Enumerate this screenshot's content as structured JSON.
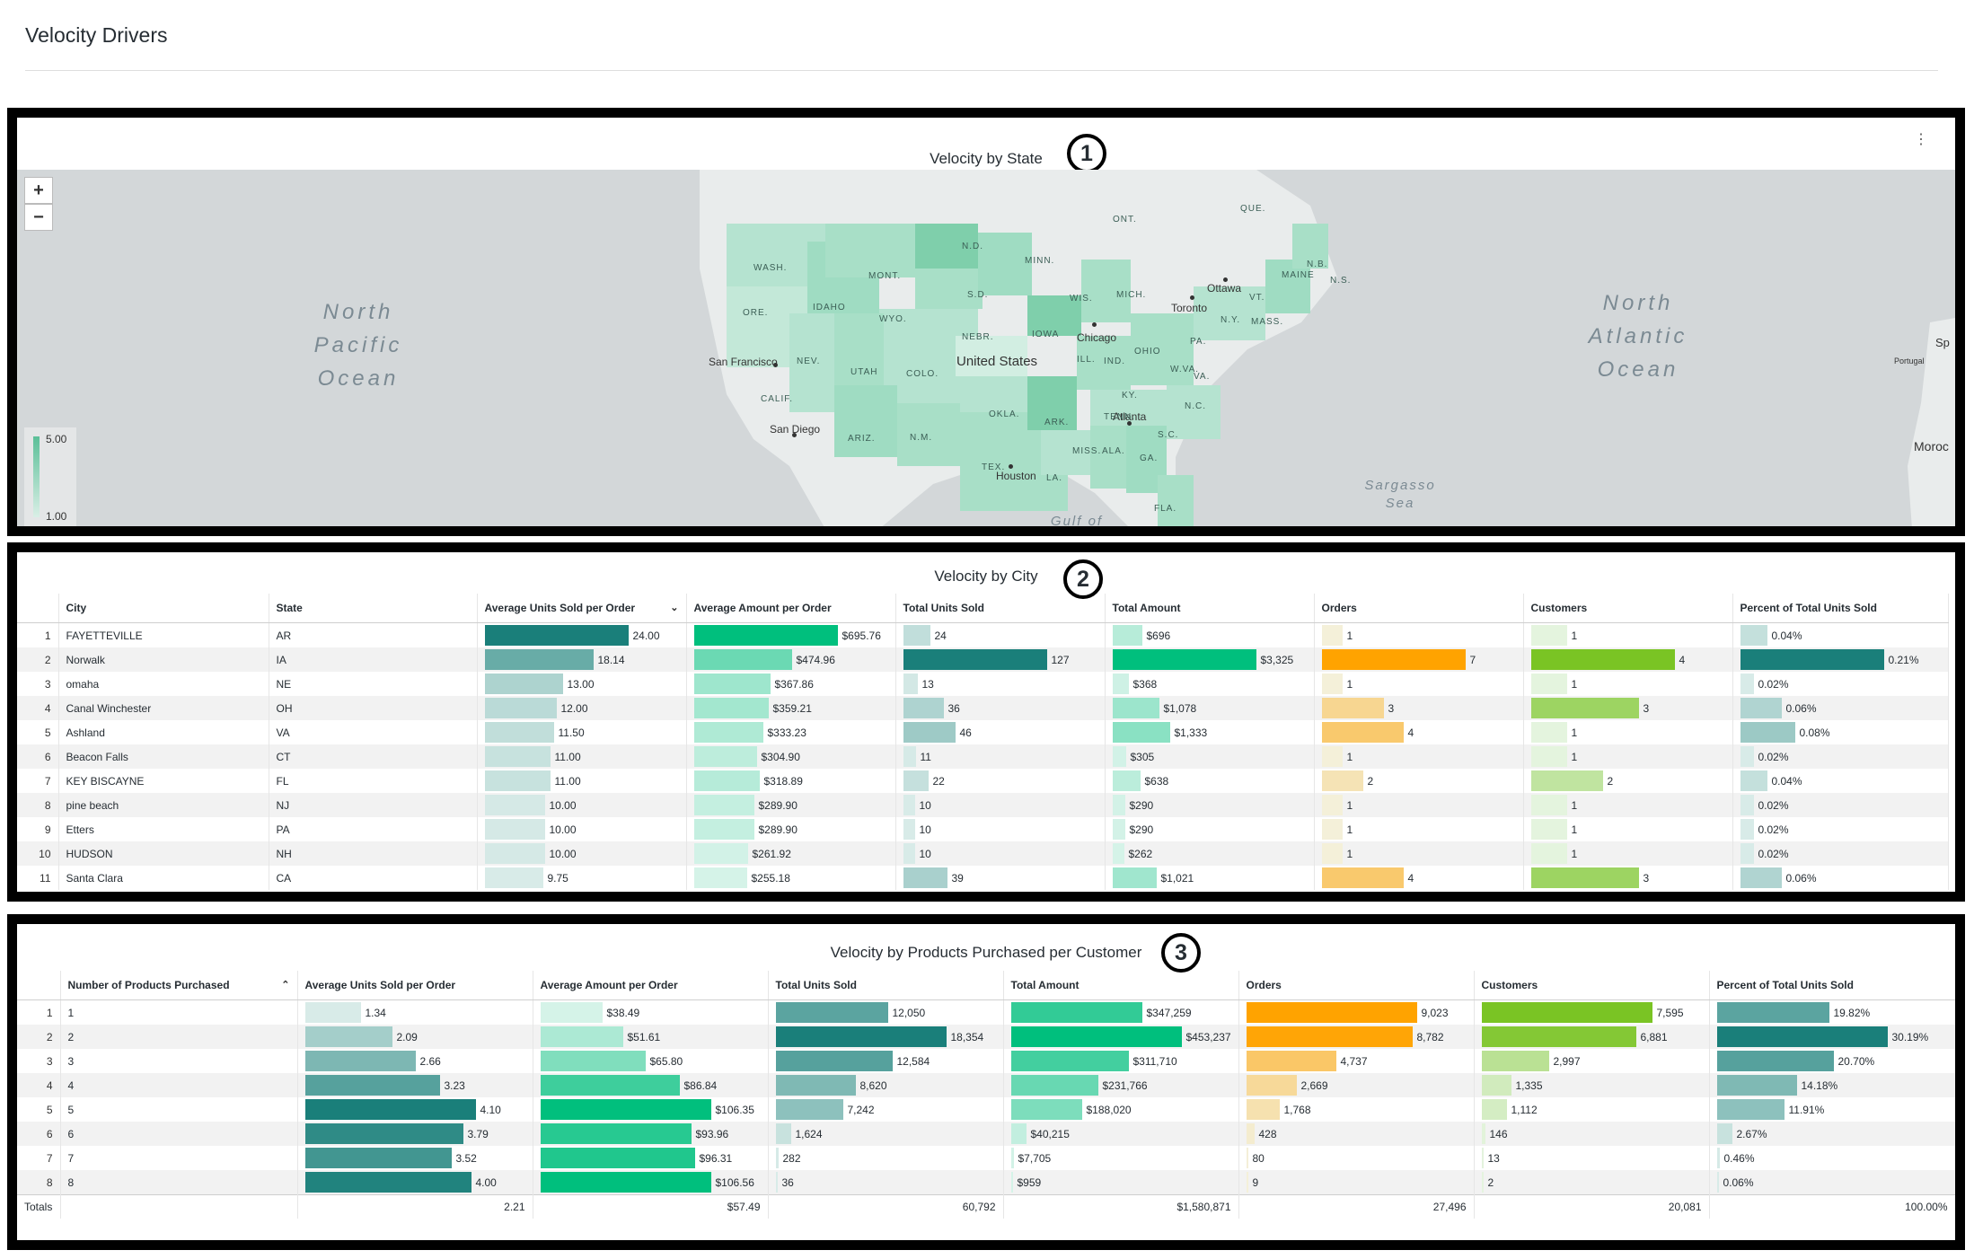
{
  "page": {
    "title": "Velocity Drivers"
  },
  "panels": {
    "map": {
      "title": "Velocity by State",
      "badge": "1"
    },
    "city": {
      "title": "Velocity by City",
      "badge": "2"
    },
    "products": {
      "title": "Velocity by Products Purchased per Customer",
      "badge": "3"
    }
  },
  "map": {
    "zoom_in": "+",
    "zoom_out": "−",
    "legend_max": "5.00",
    "legend_min": "1.00",
    "oceans": [
      "North Pacific Ocean",
      "North Atlantic Ocean",
      "Sargasso Sea",
      "Gulf of"
    ],
    "country": "United States",
    "partial_labels": [
      "Sp",
      "Portugal",
      "Moroc"
    ],
    "cities": [
      "Ottawa",
      "Toronto",
      "Chicago",
      "San Francisco",
      "San Diego",
      "Atlanta",
      "Houston"
    ],
    "state_abbrs": [
      "WASH.",
      "ORE.",
      "IDAHO",
      "MONT.",
      "WYO.",
      "N.D.",
      "S.D.",
      "NEBR.",
      "MINN.",
      "IOWA",
      "WIS.",
      "MICH.",
      "NEV.",
      "UTAH",
      "COLO.",
      "CALIF.",
      "ARIZ.",
      "N.M.",
      "OKLA.",
      "TEX.",
      "ARK.",
      "LA.",
      "MISS.",
      "ALA.",
      "GA.",
      "FLA.",
      "TENN.",
      "KY.",
      "ILL.",
      "IND.",
      "OHIO",
      "PA.",
      "N.Y.",
      "VT.",
      "MAINE",
      "MASS.",
      "W.VA.",
      "VA.",
      "N.C.",
      "S.C.",
      "ONT.",
      "QUE.",
      "N.B.",
      "N.S."
    ],
    "colors": {
      "high": "#5bbf98",
      "low": "#d9efe6",
      "land": "#e9ecec",
      "water": "#d3d7d9"
    }
  },
  "city_table": {
    "columns": [
      "City",
      "State",
      "Average Units Sold per Order",
      "Average Amount per Order",
      "Total Units Sold",
      "Total Amount",
      "Orders",
      "Customers",
      "Percent of Total Units Sold"
    ],
    "rows": [
      {
        "n": "1",
        "city": "FAYETTEVILLE",
        "state": "AR",
        "avg_units": 24.0,
        "avg_units_l": "24.00",
        "avg_amt": 695.76,
        "avg_amt_l": "$695.76",
        "units": 24,
        "units_l": "24",
        "amt": 696,
        "amt_l": "$696",
        "orders": 1,
        "orders_l": "1",
        "cust": 1,
        "cust_l": "1",
        "pct": 0.04,
        "pct_l": "0.04%"
      },
      {
        "n": "2",
        "city": "Norwalk",
        "state": "IA",
        "avg_units": 18.14,
        "avg_units_l": "18.14",
        "avg_amt": 474.96,
        "avg_amt_l": "$474.96",
        "units": 127,
        "units_l": "127",
        "amt": 3325,
        "amt_l": "$3,325",
        "orders": 7,
        "orders_l": "7",
        "cust": 4,
        "cust_l": "4",
        "pct": 0.21,
        "pct_l": "0.21%"
      },
      {
        "n": "3",
        "city": "omaha",
        "state": "NE",
        "avg_units": 13.0,
        "avg_units_l": "13.00",
        "avg_amt": 367.86,
        "avg_amt_l": "$367.86",
        "units": 13,
        "units_l": "13",
        "amt": 368,
        "amt_l": "$368",
        "orders": 1,
        "orders_l": "1",
        "cust": 1,
        "cust_l": "1",
        "pct": 0.02,
        "pct_l": "0.02%"
      },
      {
        "n": "4",
        "city": "Canal Winchester",
        "state": "OH",
        "avg_units": 12.0,
        "avg_units_l": "12.00",
        "avg_amt": 359.21,
        "avg_amt_l": "$359.21",
        "units": 36,
        "units_l": "36",
        "amt": 1078,
        "amt_l": "$1,078",
        "orders": 3,
        "orders_l": "3",
        "cust": 3,
        "cust_l": "3",
        "pct": 0.06,
        "pct_l": "0.06%"
      },
      {
        "n": "5",
        "city": "Ashland",
        "state": "VA",
        "avg_units": 11.5,
        "avg_units_l": "11.50",
        "avg_amt": 333.23,
        "avg_amt_l": "$333.23",
        "units": 46,
        "units_l": "46",
        "amt": 1333,
        "amt_l": "$1,333",
        "orders": 4,
        "orders_l": "4",
        "cust": 1,
        "cust_l": "1",
        "pct": 0.08,
        "pct_l": "0.08%"
      },
      {
        "n": "6",
        "city": "Beacon Falls",
        "state": "CT",
        "avg_units": 11.0,
        "avg_units_l": "11.00",
        "avg_amt": 304.9,
        "avg_amt_l": "$304.90",
        "units": 11,
        "units_l": "11",
        "amt": 305,
        "amt_l": "$305",
        "orders": 1,
        "orders_l": "1",
        "cust": 1,
        "cust_l": "1",
        "pct": 0.02,
        "pct_l": "0.02%"
      },
      {
        "n": "7",
        "city": "KEY BISCAYNE",
        "state": "FL",
        "avg_units": 11.0,
        "avg_units_l": "11.00",
        "avg_amt": 318.89,
        "avg_amt_l": "$318.89",
        "units": 22,
        "units_l": "22",
        "amt": 638,
        "amt_l": "$638",
        "orders": 2,
        "orders_l": "2",
        "cust": 2,
        "cust_l": "2",
        "pct": 0.04,
        "pct_l": "0.04%"
      },
      {
        "n": "8",
        "city": "pine beach",
        "state": "NJ",
        "avg_units": 10.0,
        "avg_units_l": "10.00",
        "avg_amt": 289.9,
        "avg_amt_l": "$289.90",
        "units": 10,
        "units_l": "10",
        "amt": 290,
        "amt_l": "$290",
        "orders": 1,
        "orders_l": "1",
        "cust": 1,
        "cust_l": "1",
        "pct": 0.02,
        "pct_l": "0.02%"
      },
      {
        "n": "9",
        "city": "Etters",
        "state": "PA",
        "avg_units": 10.0,
        "avg_units_l": "10.00",
        "avg_amt": 289.9,
        "avg_amt_l": "$289.90",
        "units": 10,
        "units_l": "10",
        "amt": 290,
        "amt_l": "$290",
        "orders": 1,
        "orders_l": "1",
        "cust": 1,
        "cust_l": "1",
        "pct": 0.02,
        "pct_l": "0.02%"
      },
      {
        "n": "10",
        "city": "HUDSON",
        "state": "NH",
        "avg_units": 10.0,
        "avg_units_l": "10.00",
        "avg_amt": 261.92,
        "avg_amt_l": "$261.92",
        "units": 10,
        "units_l": "10",
        "amt": 262,
        "amt_l": "$262",
        "orders": 1,
        "orders_l": "1",
        "cust": 1,
        "cust_l": "1",
        "pct": 0.02,
        "pct_l": "0.02%"
      },
      {
        "n": "11",
        "city": "Santa Clara",
        "state": "CA",
        "avg_units": 9.75,
        "avg_units_l": "9.75",
        "avg_amt": 255.18,
        "avg_amt_l": "$255.18",
        "units": 39,
        "units_l": "39",
        "amt": 1021,
        "amt_l": "$1,021",
        "orders": 4,
        "orders_l": "4",
        "cust": 3,
        "cust_l": "3",
        "pct": 0.06,
        "pct_l": "0.06%"
      }
    ]
  },
  "product_table": {
    "columns": [
      "Number of Products Purchased",
      "Average Units Sold per Order",
      "Average Amount per Order",
      "Total Units Sold",
      "Total Amount",
      "Orders",
      "Customers",
      "Percent of Total Units Sold"
    ],
    "rows": [
      {
        "n": "1",
        "prod": "1",
        "avg_units": 1.34,
        "avg_units_l": "1.34",
        "avg_amt": 38.49,
        "avg_amt_l": "$38.49",
        "units": 12050,
        "units_l": "12,050",
        "amt": 347259,
        "amt_l": "$347,259",
        "orders": 9023,
        "orders_l": "9,023",
        "cust": 7595,
        "cust_l": "7,595",
        "pct": 19.82,
        "pct_l": "19.82%"
      },
      {
        "n": "2",
        "prod": "2",
        "avg_units": 2.09,
        "avg_units_l": "2.09",
        "avg_amt": 51.61,
        "avg_amt_l": "$51.61",
        "units": 18354,
        "units_l": "18,354",
        "amt": 453237,
        "amt_l": "$453,237",
        "orders": 8782,
        "orders_l": "8,782",
        "cust": 6881,
        "cust_l": "6,881",
        "pct": 30.19,
        "pct_l": "30.19%"
      },
      {
        "n": "3",
        "prod": "3",
        "avg_units": 2.66,
        "avg_units_l": "2.66",
        "avg_amt": 65.8,
        "avg_amt_l": "$65.80",
        "units": 12584,
        "units_l": "12,584",
        "amt": 311710,
        "amt_l": "$311,710",
        "orders": 4737,
        "orders_l": "4,737",
        "cust": 2997,
        "cust_l": "2,997",
        "pct": 20.7,
        "pct_l": "20.70%"
      },
      {
        "n": "4",
        "prod": "4",
        "avg_units": 3.23,
        "avg_units_l": "3.23",
        "avg_amt": 86.84,
        "avg_amt_l": "$86.84",
        "units": 8620,
        "units_l": "8,620",
        "amt": 231766,
        "amt_l": "$231,766",
        "orders": 2669,
        "orders_l": "2,669",
        "cust": 1335,
        "cust_l": "1,335",
        "pct": 14.18,
        "pct_l": "14.18%"
      },
      {
        "n": "5",
        "prod": "5",
        "avg_units": 4.1,
        "avg_units_l": "4.10",
        "avg_amt": 106.35,
        "avg_amt_l": "$106.35",
        "units": 7242,
        "units_l": "7,242",
        "amt": 188020,
        "amt_l": "$188,020",
        "orders": 1768,
        "orders_l": "1,768",
        "cust": 1112,
        "cust_l": "1,112",
        "pct": 11.91,
        "pct_l": "11.91%"
      },
      {
        "n": "6",
        "prod": "6",
        "avg_units": 3.79,
        "avg_units_l": "3.79",
        "avg_amt": 93.96,
        "avg_amt_l": "$93.96",
        "units": 1624,
        "units_l": "1,624",
        "amt": 40215,
        "amt_l": "$40,215",
        "orders": 428,
        "orders_l": "428",
        "cust": 146,
        "cust_l": "146",
        "pct": 2.67,
        "pct_l": "2.67%"
      },
      {
        "n": "7",
        "prod": "7",
        "avg_units": 3.52,
        "avg_units_l": "3.52",
        "avg_amt": 96.31,
        "avg_amt_l": "$96.31",
        "units": 282,
        "units_l": "282",
        "amt": 7705,
        "amt_l": "$7,705",
        "orders": 80,
        "orders_l": "80",
        "cust": 13,
        "cust_l": "13",
        "pct": 0.46,
        "pct_l": "0.46%"
      },
      {
        "n": "8",
        "prod": "8",
        "avg_units": 4.0,
        "avg_units_l": "4.00",
        "avg_amt": 106.56,
        "avg_amt_l": "$106.56",
        "units": 36,
        "units_l": "36",
        "amt": 959,
        "amt_l": "$959",
        "orders": 9,
        "orders_l": "9",
        "cust": 2,
        "cust_l": "2",
        "pct": 0.06,
        "pct_l": "0.06%"
      }
    ],
    "totals": {
      "label": "Totals",
      "avg_units": "2.21",
      "avg_amt": "$57.49",
      "units": "60,792",
      "amt": "$1,580,871",
      "orders": "27,496",
      "cust": "20,081",
      "pct": "100.00%"
    }
  },
  "bar_colors": {
    "avg_units": "#1a7f7a",
    "avg_amt": "#00bf7d",
    "units": "#1a7f7a",
    "amt": "#00bf7d",
    "orders": "#ffa300",
    "cust": "#7ac424",
    "pct": "#1a7f7a"
  }
}
